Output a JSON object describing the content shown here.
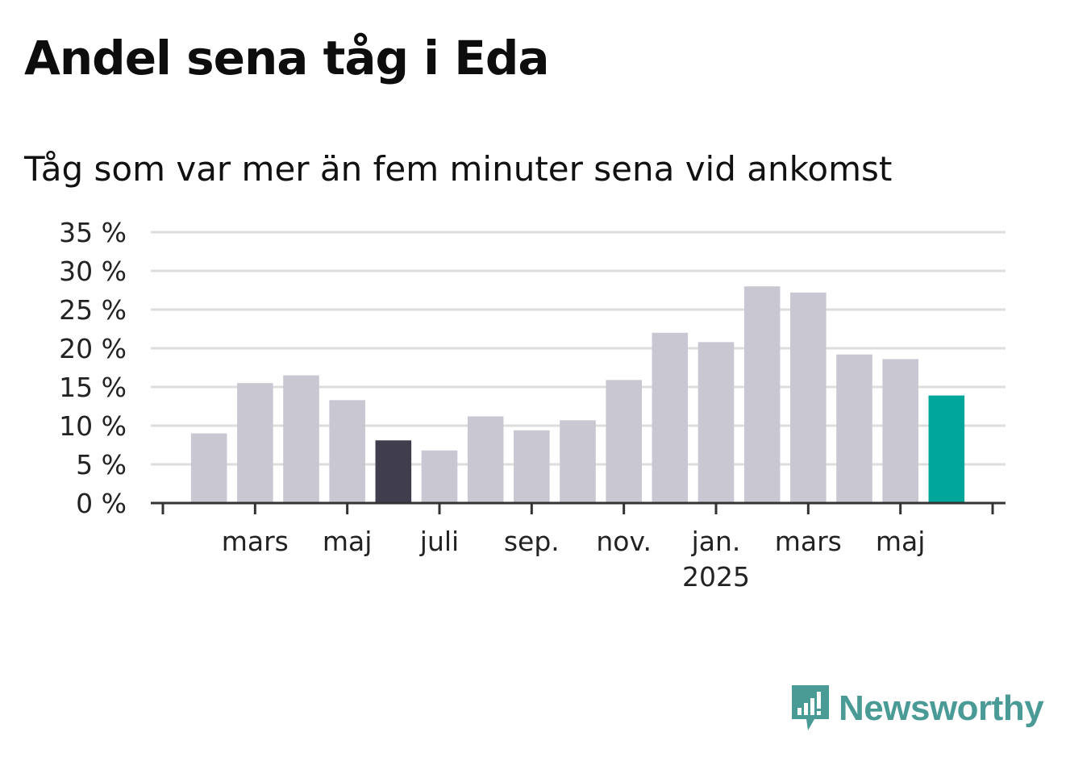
{
  "title": "Andel sena tåg i Eda",
  "subtitle": "Tåg som var mer än fem minuter sena vid ankomst",
  "brand": "Newsworthy",
  "colors": {
    "bar_default": "#c9c8d2",
    "bar_highlight_dark": "#403e4c",
    "bar_highlight_latest": "#00a699",
    "grid": "#dddddd",
    "axis": "#333333",
    "brand": "#4a9a96"
  },
  "chart_data": {
    "type": "bar",
    "ylim": [
      0,
      35
    ],
    "yticks": [
      0,
      5,
      10,
      15,
      20,
      25,
      30,
      35
    ],
    "ytick_labels": [
      "0 %",
      "5 %",
      "10 %",
      "15 %",
      "20 %",
      "25 %",
      "30 %",
      "35 %"
    ],
    "grid": true,
    "categories": [
      "2024-02",
      "2024-03",
      "2024-04",
      "2024-05",
      "2024-06",
      "2024-07",
      "2024-08",
      "2024-09",
      "2024-10",
      "2024-11",
      "2024-12",
      "2025-01",
      "2025-02",
      "2025-03",
      "2025-04",
      "2025-05",
      "2025-06"
    ],
    "values": [
      9.0,
      15.5,
      16.5,
      13.3,
      8.1,
      6.8,
      11.2,
      9.4,
      10.7,
      15.9,
      22.0,
      20.8,
      28.0,
      27.2,
      19.2,
      18.6,
      13.9
    ],
    "highlight": {
      "2024-06": "dark",
      "2025-06": "latest"
    },
    "xtick_labels": [
      {
        "category": "2024-03",
        "label": "mars",
        "sub": ""
      },
      {
        "category": "2024-05",
        "label": "maj",
        "sub": ""
      },
      {
        "category": "2024-07",
        "label": "juli",
        "sub": ""
      },
      {
        "category": "2024-09",
        "label": "sep.",
        "sub": ""
      },
      {
        "category": "2024-11",
        "label": "nov.",
        "sub": ""
      },
      {
        "category": "2025-01",
        "label": "jan.",
        "sub": "2025"
      },
      {
        "category": "2025-03",
        "label": "mars",
        "sub": ""
      },
      {
        "category": "2025-05",
        "label": "maj",
        "sub": ""
      }
    ]
  }
}
